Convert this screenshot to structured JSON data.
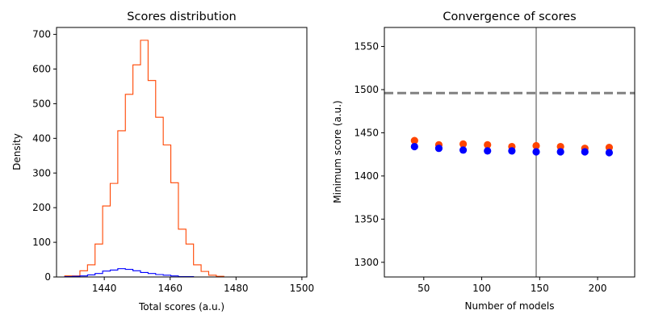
{
  "chart_data": [
    {
      "type": "histogram",
      "title": "Scores distribution",
      "xlabel": "Total scores (a.u.)",
      "ylabel": "Density",
      "xlim": [
        1425.5,
        1501.5
      ],
      "ylim": [
        0,
        720
      ],
      "xticks": [
        1440,
        1460,
        1480,
        1500
      ],
      "yticks": [
        0,
        100,
        200,
        300,
        400,
        500,
        600,
        700
      ],
      "grid": false,
      "bin_edges": [
        1428,
        1430.3,
        1432.6,
        1434.9,
        1437.2,
        1439.5,
        1441.8,
        1444.1,
        1446.4,
        1448.7,
        1451,
        1453.3,
        1455.6,
        1457.9,
        1460.2,
        1462.5,
        1464.8,
        1467.1,
        1469.4,
        1471.7,
        1474,
        1476.3,
        1478.6,
        1480.9,
        1483.2,
        1485.5,
        1487.8,
        1490.1,
        1492.4,
        1494.7,
        1497
      ],
      "series": [
        {
          "color": "#ff4500",
          "values": [
            3,
            3,
            18,
            35,
            95,
            205,
            270,
            422,
            527,
            612,
            683,
            567,
            461,
            381,
            272,
            138,
            95,
            35,
            16,
            5,
            2
          ]
        },
        {
          "color": "#0000ff",
          "values": [
            1,
            2,
            3,
            6,
            10,
            17,
            20,
            24,
            22,
            18,
            13,
            10,
            7,
            5,
            3,
            1,
            1,
            0,
            0,
            0,
            0
          ]
        }
      ]
    },
    {
      "type": "scatter",
      "title": "Convergence of scores",
      "xlabel": "Number of models",
      "ylabel": "Minimum score (a.u.)",
      "xlim": [
        16,
        232
      ],
      "ylim": [
        1283,
        1572
      ],
      "xticks": [
        50,
        100,
        150,
        200
      ],
      "yticks": [
        1300,
        1350,
        1400,
        1450,
        1500,
        1550
      ],
      "grid": false,
      "reference_lines": [
        {
          "orientation": "horizontal",
          "value": 1496,
          "style": "dashed",
          "color": "#808080"
        },
        {
          "orientation": "vertical",
          "value": 147,
          "style": "solid",
          "color": "#808080"
        }
      ],
      "series": [
        {
          "color": "#ff4500",
          "x": [
            42,
            63,
            84,
            105,
            126,
            147,
            168,
            189,
            210
          ],
          "y": [
            1441,
            1436,
            1437,
            1436,
            1434,
            1435,
            1434,
            1432,
            1433
          ]
        },
        {
          "color": "#0000ff",
          "x": [
            42,
            63,
            84,
            105,
            126,
            147,
            168,
            189,
            210
          ],
          "y": [
            1434,
            1432,
            1430,
            1429,
            1429,
            1428,
            1428,
            1428,
            1427
          ]
        }
      ]
    }
  ]
}
